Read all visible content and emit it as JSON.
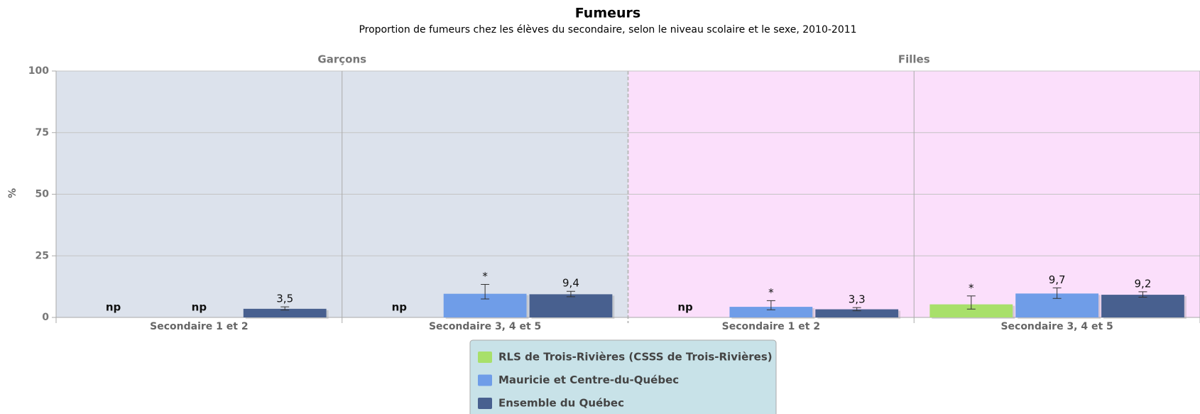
{
  "chart_data": {
    "type": "bar",
    "title": "Fumeurs",
    "subtitle": "Proportion de fumeurs chez les élèves du secondaire, selon le niveau scolaire et le sexe, 2010-2011",
    "ylabel": "%",
    "ylim": [
      0,
      100
    ],
    "yticks": [
      0,
      25,
      50,
      75,
      100
    ],
    "grid": true,
    "panels": [
      {
        "label": "Garçons",
        "color": "#dce2ec",
        "size": 2
      },
      {
        "label": "Filles",
        "color": "#fbdffb",
        "size": 2
      }
    ],
    "categories": [
      "Secondaire 1 et 2",
      "Secondaire 3, 4 et 5",
      "Secondaire 1 et 2",
      "Secondaire 3, 4 et 5"
    ],
    "series": [
      {
        "name": "RLS de Trois-Rivières (CSSS de Trois-Rivières)",
        "color": "#a8e06a",
        "values": [
          null,
          null,
          null,
          5.3
        ],
        "value_labels": [
          "np",
          "np",
          "np",
          "*"
        ],
        "error_low": [
          null,
          null,
          null,
          3.4
        ],
        "error_high": [
          null,
          null,
          null,
          8.7
        ]
      },
      {
        "name": "Mauricie et Centre-du-Québec",
        "color": "#6f9de8",
        "values": [
          null,
          9.6,
          4.3,
          9.7
        ],
        "value_labels": [
          "np",
          "*",
          "*",
          "9,7"
        ],
        "error_low": [
          null,
          7.5,
          3.1,
          7.7
        ],
        "error_high": [
          null,
          13.4,
          6.8,
          12.0
        ]
      },
      {
        "name": "Ensemble du Québec",
        "color": "#48608f",
        "values": [
          3.5,
          9.4,
          3.3,
          9.2
        ],
        "value_labels": [
          "3,5",
          "9,4",
          "3,3",
          "9,2"
        ],
        "error_low": [
          3.0,
          8.4,
          2.7,
          8.2
        ],
        "error_high": [
          4.3,
          10.6,
          4.0,
          10.4
        ]
      }
    ],
    "legend": "bottom"
  }
}
